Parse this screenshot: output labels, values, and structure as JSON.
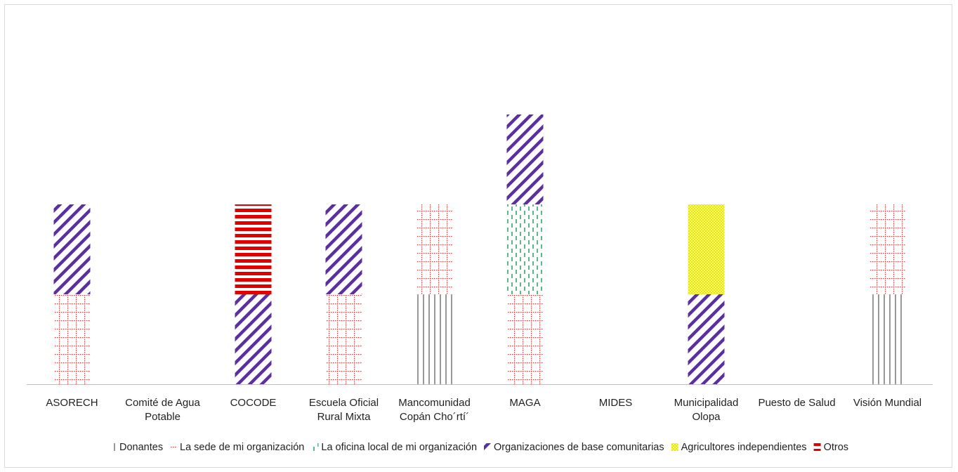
{
  "chart_data": {
    "type": "bar",
    "stacked": true,
    "title": "",
    "xlabel": "",
    "ylabel": "",
    "ylim": [
      0,
      3.5
    ],
    "grid": false,
    "legend_position": "bottom",
    "categories": [
      [
        "ASORECH"
      ],
      [
        "Comité de Agua",
        "Potable"
      ],
      [
        "COCODE"
      ],
      [
        "Escuela Oficial",
        "Rural Mixta"
      ],
      [
        "Mancomunidad",
        "Copán Cho´rtí´"
      ],
      [
        "MAGA"
      ],
      [
        "MIDES"
      ],
      [
        "Municipalidad",
        "Olopa"
      ],
      [
        "Puesto de Salud"
      ],
      [
        "Visión Mundial"
      ]
    ],
    "series": [
      {
        "name": "Donantes",
        "pattern": "vertical-lines",
        "color": "#7f7f7f",
        "values": [
          0,
          0,
          0,
          0,
          1,
          0,
          0,
          0,
          0,
          1
        ]
      },
      {
        "name": "La sede de mi organización",
        "pattern": "dotted-grid",
        "color": "#e03030",
        "values": [
          1,
          0,
          0,
          1,
          1,
          1,
          0,
          0,
          0,
          1
        ]
      },
      {
        "name": "La oficina local de mi organización",
        "pattern": "dashed-vertical",
        "color": "#1fa060",
        "values": [
          0,
          0,
          0,
          0,
          0,
          1,
          0,
          0,
          0,
          0
        ]
      },
      {
        "name": "Organizaciones de base comunitarias",
        "pattern": "wide-diagonal",
        "color": "#5b2fa0",
        "values": [
          1,
          0,
          1,
          1,
          0,
          1,
          0,
          1,
          0,
          0
        ]
      },
      {
        "name": "Agricultores independientes",
        "pattern": "checker",
        "color": "#e6e600",
        "values": [
          0,
          0,
          0,
          0,
          0,
          0,
          0,
          1,
          0,
          0
        ]
      },
      {
        "name": "Otros",
        "pattern": "horizontal-lines",
        "color": "#e00000",
        "values": [
          0,
          0,
          1,
          0,
          0,
          0,
          0,
          0,
          0,
          0
        ]
      }
    ]
  }
}
